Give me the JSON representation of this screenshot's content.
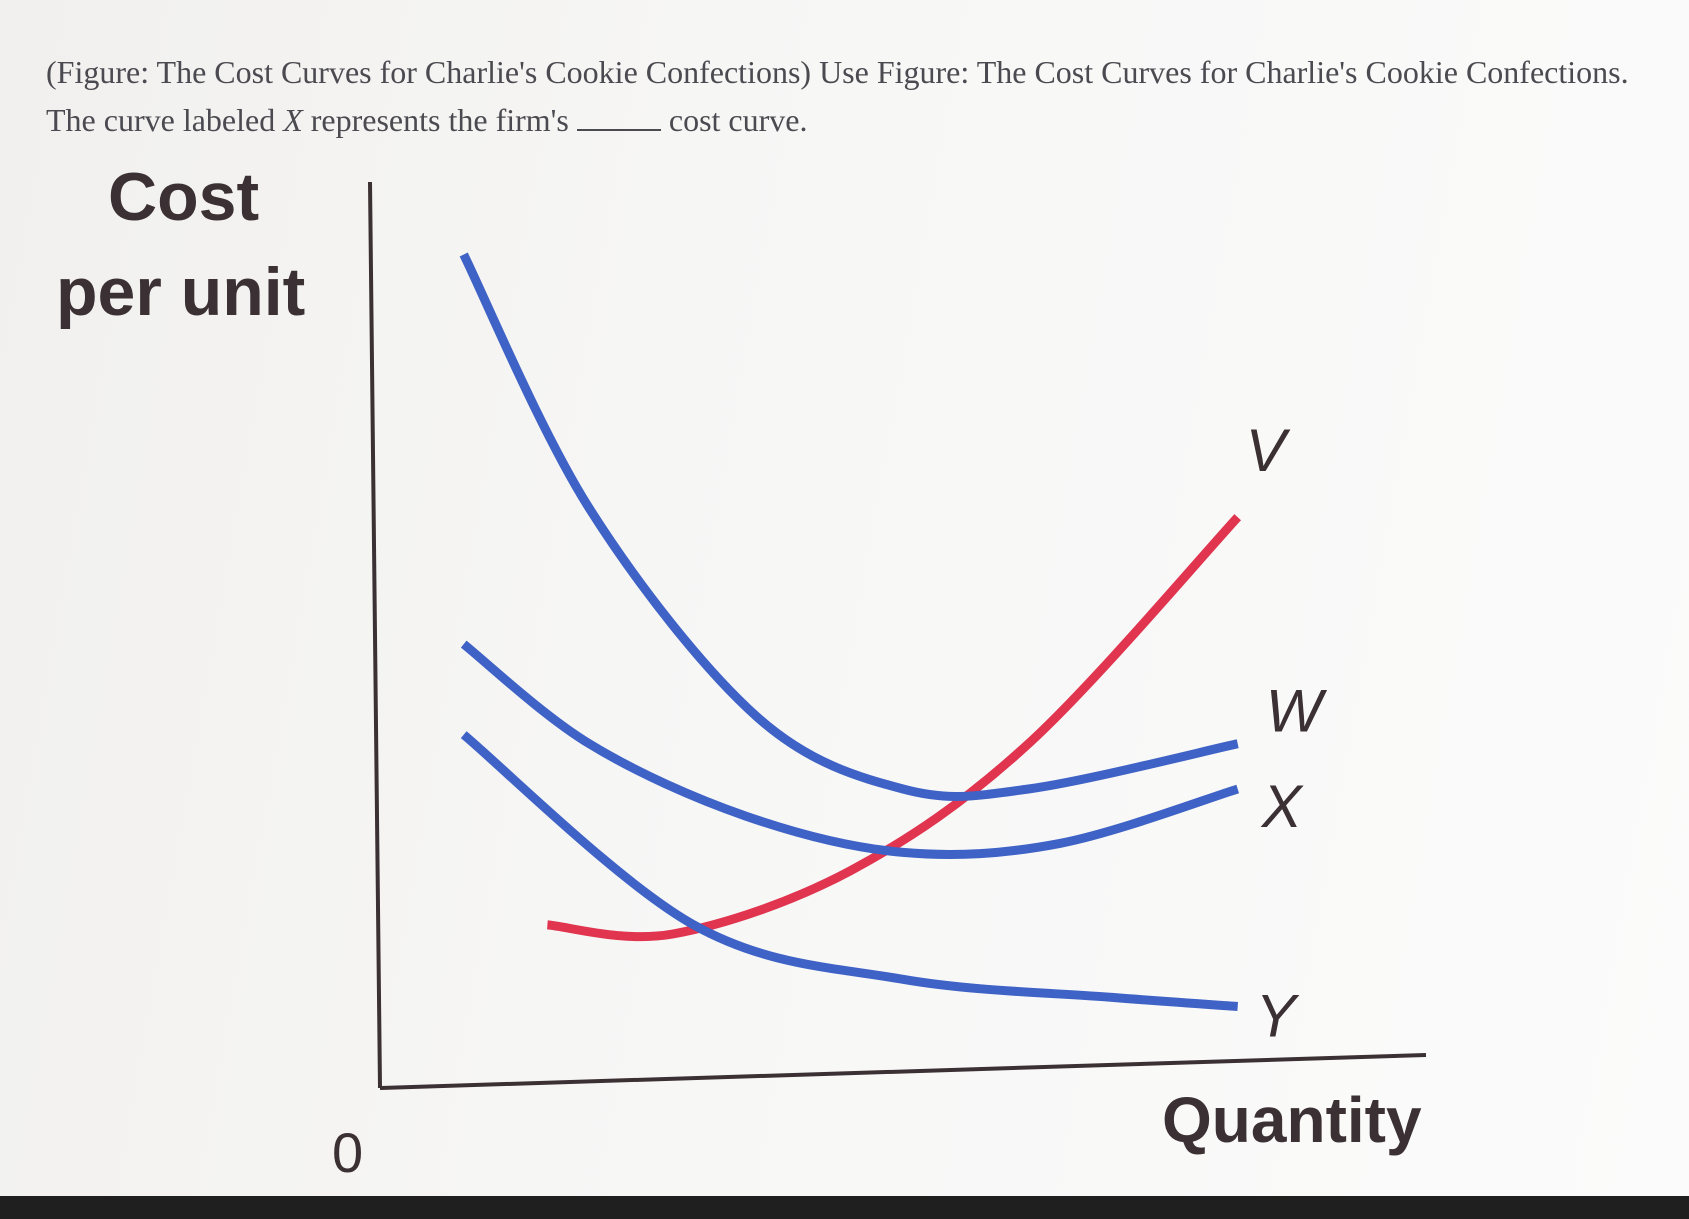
{
  "question": {
    "line1": "(Figure: The Cost Curves for Charlie's Cookie Confections) Use Figure: The Cost Curves for Charlie's Cookie Confections.",
    "line2_before": "The curve labeled",
    "line2_italic": "X",
    "line2_middle": "represents the firm's",
    "line2_after": "cost curve."
  },
  "colors": {
    "blue_curve": "#3f62c6",
    "red_curve": "#e0344f",
    "axis": "#3b3033"
  },
  "chart_data": {
    "type": "line",
    "ylabel_line1": "Cost",
    "ylabel_line2": "per unit",
    "xlabel": "Quantity",
    "origin_label": "0",
    "series": [
      {
        "name": "V",
        "color": "#e0344f",
        "values": [
          [
            0.16,
            0.18
          ],
          [
            0.28,
            0.17
          ],
          [
            0.45,
            0.24
          ],
          [
            0.62,
            0.38
          ],
          [
            0.82,
            0.63
          ]
        ]
      },
      {
        "name": "W",
        "color": "#3f62c6",
        "values": [
          [
            0.08,
            0.92
          ],
          [
            0.2,
            0.64
          ],
          [
            0.36,
            0.41
          ],
          [
            0.5,
            0.33
          ],
          [
            0.62,
            0.33
          ],
          [
            0.82,
            0.38
          ]
        ]
      },
      {
        "name": "X",
        "color": "#3f62c6",
        "values": [
          [
            0.08,
            0.49
          ],
          [
            0.2,
            0.38
          ],
          [
            0.35,
            0.3
          ],
          [
            0.5,
            0.26
          ],
          [
            0.65,
            0.27
          ],
          [
            0.82,
            0.33
          ]
        ]
      },
      {
        "name": "Y",
        "color": "#3f62c6",
        "values": [
          [
            0.08,
            0.39
          ],
          [
            0.3,
            0.18
          ],
          [
            0.5,
            0.12
          ],
          [
            0.7,
            0.1
          ],
          [
            0.82,
            0.09
          ]
        ]
      }
    ],
    "xlim": [
      0,
      1
    ],
    "ylim": [
      0,
      1
    ],
    "grid": false
  }
}
